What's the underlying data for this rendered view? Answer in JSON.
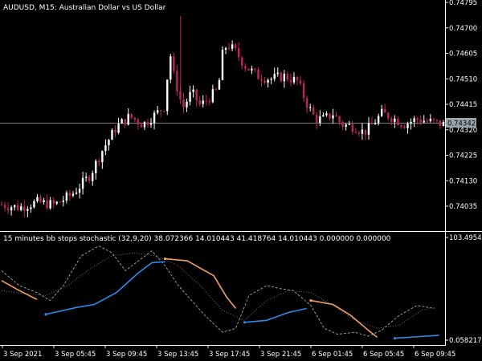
{
  "header": {
    "symbol": "AUDUSD",
    "timeframe": "M15",
    "description": "Australian Dollar vs US Dollar",
    "title_text": "AUDUSD, M15:  Australian Dollar vs US Dollar"
  },
  "price_axis": {
    "labels": [
      "0.74795",
      "0.74700",
      "0.74605",
      "0.74510",
      "0.74415",
      "0.74320",
      "0.74225",
      "0.74130",
      "0.74035"
    ],
    "current_price": "0.74342"
  },
  "indicator": {
    "label": "15 minutes bb stops stochastic (32,9,20) 38.072366 14.010443 41.418764 14.010443 0.000000 0.000000",
    "axis_max": "103.495490",
    "axis_min": "0.058217"
  },
  "time_axis": {
    "labels": [
      "3 Sep 2021",
      "3 Sep 05:45",
      "3 Sep 09:45",
      "3 Sep 13:45",
      "3 Sep 17:45",
      "3 Sep 21:45",
      "6 Sep 01:45",
      "6 Sep 05:45",
      "6 Sep 09:45"
    ]
  },
  "colors": {
    "background": "#000000",
    "axis": "#ffffff",
    "bull": "#ffffff",
    "bear": "#c0245f",
    "up_trend": "#2e8be8",
    "down_trend": "#f4a15a",
    "stoch_main": "#bbbbbb",
    "stoch_signal": "#888888",
    "price_label_bg": "#9aa2aa"
  },
  "chart_data": {
    "type": "candlestick",
    "symbol": "AUDUSD",
    "timeframe": "M15",
    "x_range": [
      "3 Sep 2021",
      "6 Sep 09:45"
    ],
    "ylim": [
      0.74,
      0.748
    ],
    "close_path": [
      [
        0,
        0.7404
      ],
      [
        0.04,
        0.7403
      ],
      [
        0.08,
        0.7405
      ],
      [
        0.12,
        0.7404
      ],
      [
        0.16,
        0.7408
      ],
      [
        0.2,
        0.7415
      ],
      [
        0.23,
        0.7425
      ],
      [
        0.26,
        0.7433
      ],
      [
        0.29,
        0.7437
      ],
      [
        0.32,
        0.7434
      ],
      [
        0.35,
        0.7438
      ],
      [
        0.37,
        0.7441
      ],
      [
        0.38,
        0.7462
      ],
      [
        0.39,
        0.7452
      ],
      [
        0.41,
        0.744
      ],
      [
        0.43,
        0.7446
      ],
      [
        0.45,
        0.7441
      ],
      [
        0.47,
        0.7444
      ],
      [
        0.49,
        0.7447
      ],
      [
        0.5,
        0.746
      ],
      [
        0.51,
        0.7464
      ],
      [
        0.53,
        0.7461
      ],
      [
        0.55,
        0.7456
      ],
      [
        0.58,
        0.7452
      ],
      [
        0.61,
        0.7451
      ],
      [
        0.64,
        0.7452
      ],
      [
        0.67,
        0.745
      ],
      [
        0.69,
        0.7442
      ],
      [
        0.71,
        0.7436
      ],
      [
        0.73,
        0.7436
      ],
      [
        0.75,
        0.7438
      ],
      [
        0.77,
        0.7434
      ],
      [
        0.8,
        0.7433
      ],
      [
        0.82,
        0.7431
      ],
      [
        0.84,
        0.7434
      ],
      [
        0.86,
        0.7438
      ],
      [
        0.88,
        0.7437
      ],
      [
        0.91,
        0.7434
      ],
      [
        0.94,
        0.7436
      ],
      [
        1.0,
        0.7434
      ]
    ],
    "indicator_series": {
      "ylim": [
        0.058217,
        103.49549
      ],
      "up_trend_segments": [
        [
          [
            0.1,
            26
          ],
          [
            0.17,
            33
          ],
          [
            0.21,
            36
          ],
          [
            0.26,
            48
          ],
          [
            0.31,
            68
          ],
          [
            0.34,
            78
          ],
          [
            0.37,
            79
          ]
        ],
        [
          [
            0.55,
            18
          ],
          [
            0.6,
            20
          ],
          [
            0.65,
            28
          ],
          [
            0.69,
            32
          ]
        ]
      ],
      "down_trend_segments": [
        [
          [
            0.0,
            60
          ],
          [
            0.04,
            50
          ],
          [
            0.08,
            41
          ]
        ],
        [
          [
            0.37,
            82
          ],
          [
            0.42,
            80
          ],
          [
            0.48,
            65
          ],
          [
            0.51,
            43
          ],
          [
            0.53,
            32
          ]
        ],
        [
          [
            0.7,
            40
          ],
          [
            0.75,
            36
          ],
          [
            0.79,
            25
          ],
          [
            0.83,
            10
          ],
          [
            0.85,
            3
          ]
        ]
      ],
      "up_trend_end": [
        [
          0.89,
          2
        ],
        [
          0.99,
          5
        ]
      ]
    }
  }
}
